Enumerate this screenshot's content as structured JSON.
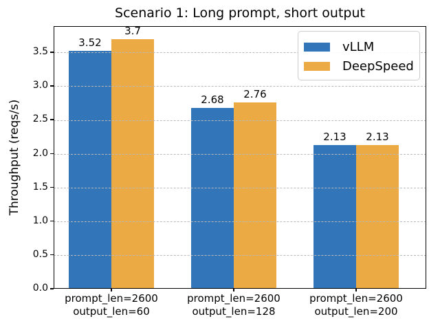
{
  "title": "Scenario 1: Long prompt, short output",
  "chart_data": {
    "type": "bar",
    "title": "Scenario 1: Long prompt, short output",
    "xlabel": "",
    "ylabel": "Throughput (reqs/s)",
    "categories": [
      [
        "prompt_len=2600",
        "output_len=60"
      ],
      [
        "prompt_len=2600",
        "output_len=128"
      ],
      [
        "prompt_len=2600",
        "output_len=200"
      ]
    ],
    "series": [
      {
        "name": "vLLM",
        "color": "#3375b9",
        "values": [
          3.52,
          2.68,
          2.13
        ],
        "labels": [
          "3.52",
          "2.68",
          "2.13"
        ]
      },
      {
        "name": "DeepSpeed",
        "color": "#ebaa44",
        "values": [
          3.7,
          2.76,
          2.13
        ],
        "labels": [
          "3.7",
          "2.76",
          "2.13"
        ]
      }
    ],
    "ylim": [
      0,
      3.89
    ],
    "yticks": [
      0.0,
      0.5,
      1.0,
      1.5,
      2.0,
      2.5,
      3.0,
      3.5
    ],
    "ytick_labels": [
      "0.0",
      "0.5",
      "1.0",
      "1.5",
      "2.0",
      "2.5",
      "3.0",
      "3.5"
    ],
    "grid": {
      "axis": "y",
      "style": "dashed",
      "color": "#b9b9b9",
      "drawn_above_bars": true
    },
    "legend": {
      "position": "upper right",
      "entries": [
        "vLLM",
        "DeepSpeed"
      ]
    }
  }
}
